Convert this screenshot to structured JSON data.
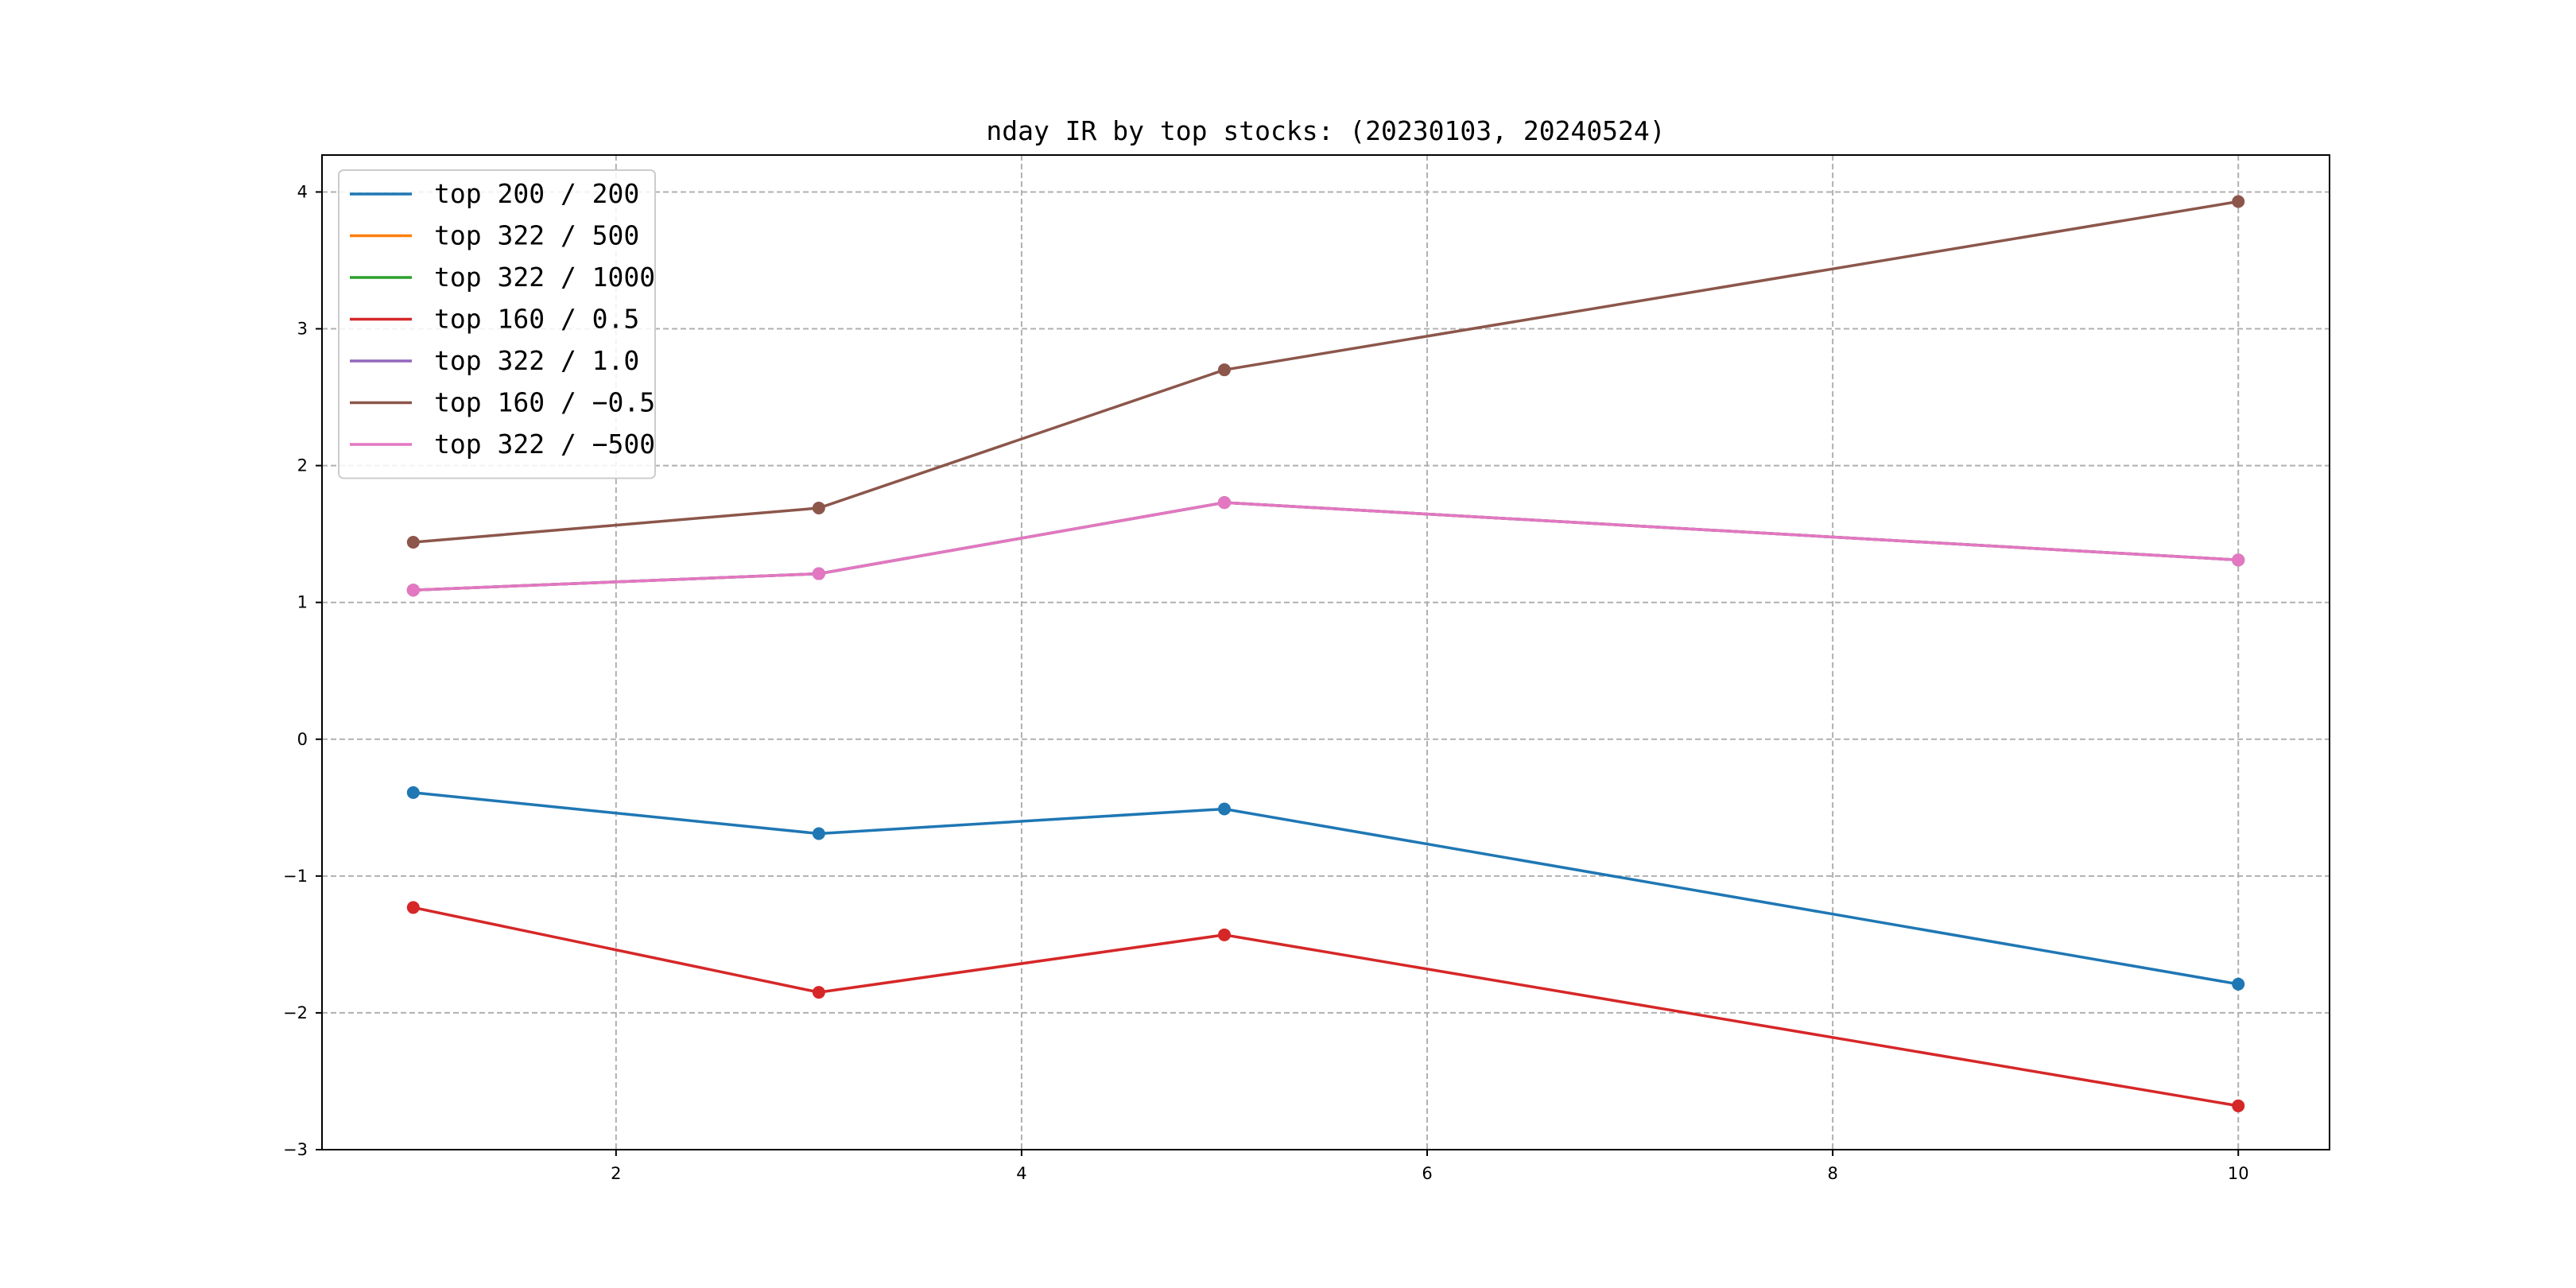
{
  "chart_data": {
    "type": "line",
    "title": "nday IR by top stocks: (20230103, 20240524)",
    "xlabel": "",
    "ylabel": "",
    "xlim": [
      0.55,
      10.45
    ],
    "ylim": [
      -3,
      4.27
    ],
    "xticks": [
      2,
      4,
      6,
      8,
      10
    ],
    "yticks": [
      -3,
      -2,
      -1,
      0,
      1,
      2,
      3,
      4
    ],
    "ytick_labels": [
      "−3",
      "−2",
      "−1",
      "0",
      "1",
      "2",
      "3",
      "4"
    ],
    "grid": true,
    "legend_position": "upper left",
    "x": [
      1,
      3,
      5,
      10
    ],
    "series": [
      {
        "name": "top 200 / 200",
        "color": "#1f77b4",
        "values": [
          -0.39,
          -0.69,
          -0.51,
          -1.79
        ]
      },
      {
        "name": "top 322 / 500",
        "color": "#ff7f0e",
        "values": [
          1.09,
          1.21,
          1.73,
          1.31
        ]
      },
      {
        "name": "top 322 / 1000",
        "color": "#2ca02c",
        "values": [
          1.09,
          1.21,
          1.73,
          1.31
        ]
      },
      {
        "name": "top 160 / 0.5",
        "color": "#d62728",
        "values": [
          -1.23,
          -1.85,
          -1.43,
          -2.68
        ]
      },
      {
        "name": "top 322 / 1.0",
        "color": "#9467bd",
        "values": [
          1.09,
          1.21,
          1.73,
          1.31
        ]
      },
      {
        "name": "top 160 / −0.5",
        "color": "#8c564b",
        "values": [
          1.44,
          1.69,
          2.7,
          3.93
        ]
      },
      {
        "name": "top 322 / −500",
        "color": "#e377c2",
        "values": [
          1.09,
          1.21,
          1.73,
          1.31
        ]
      }
    ]
  }
}
